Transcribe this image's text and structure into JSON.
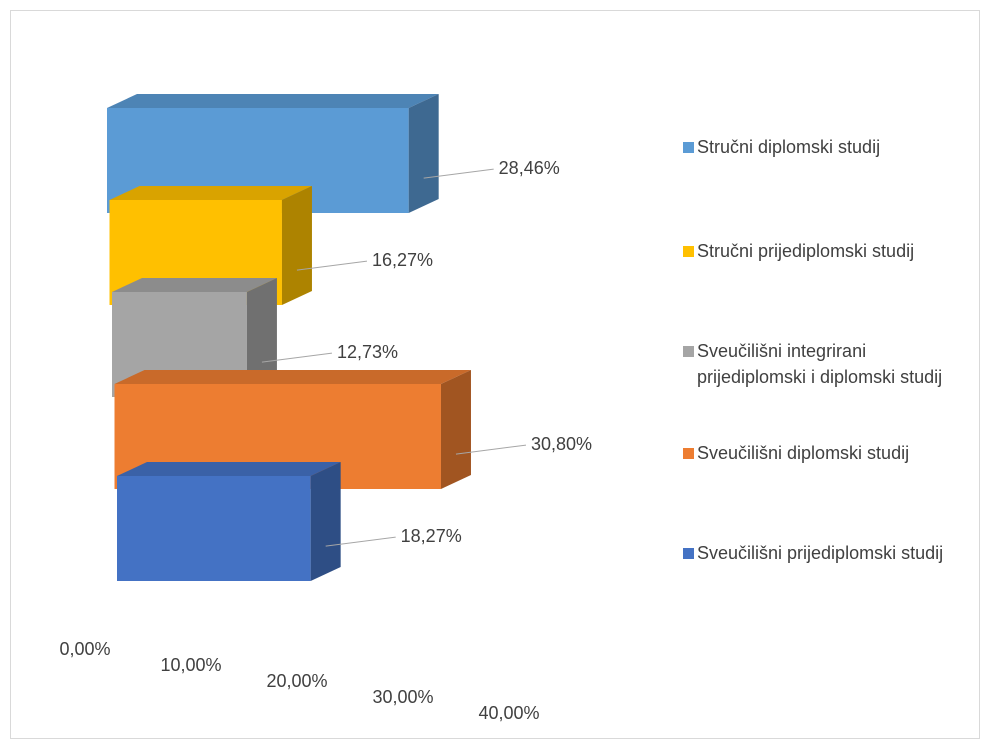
{
  "chart_data": {
    "type": "bar3d_horizontal",
    "categories": [
      "Stručni diplomski studij",
      "Stručni prijediplomski studij",
      "Sveučilišni integrirani prijediplomski i diplomski studij",
      "Sveučilišni diplomski studij",
      "Sveučilišni prijediplomski studij"
    ],
    "values": [
      28.46,
      16.27,
      12.73,
      30.8,
      18.27
    ],
    "value_labels": [
      "28,46%",
      "16,27%",
      "12,73%",
      "30,80%",
      "18,27%"
    ],
    "colors": [
      "#5b9bd5",
      "#ffc000",
      "#a5a5a5",
      "#ed7d31",
      "#4472c4"
    ],
    "xlim": [
      0,
      40
    ],
    "xticks": [
      {
        "value": 0,
        "label": "0,00%"
      },
      {
        "value": 10,
        "label": "10,00%"
      },
      {
        "value": 20,
        "label": "20,00%"
      },
      {
        "value": 30,
        "label": "30,00%"
      },
      {
        "value": 40,
        "label": "40,00%"
      }
    ],
    "legend": "right"
  }
}
